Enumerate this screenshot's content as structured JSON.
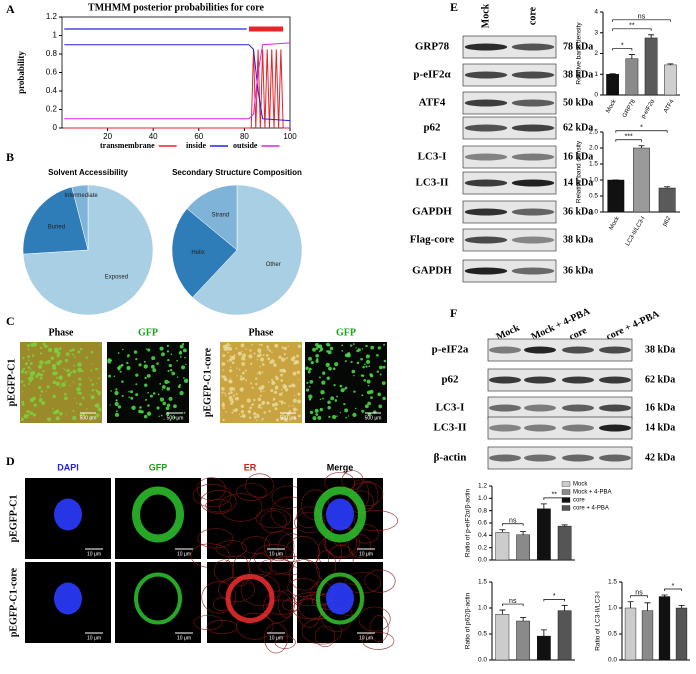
{
  "panel_labels": [
    "A",
    "B",
    "C",
    "D",
    "E",
    "F"
  ],
  "chart_data": [
    {
      "type": "line",
      "title": "TMHMM posterior probabilities for core",
      "y_label": "probability",
      "xlim": [
        0,
        100
      ],
      "ylim": [
        0,
        1.2
      ],
      "xticks": [
        20,
        40,
        60,
        80,
        100
      ],
      "yticks": [
        0,
        0.2,
        0.4,
        0.6,
        0.8,
        1,
        1.2
      ],
      "topology": [
        {
          "region": "inside",
          "start": 1,
          "end": 81
        },
        {
          "region": "transmembrane",
          "start": 82,
          "end": 97
        }
      ],
      "series": [
        {
          "name": "transmembrane",
          "color": "#e8232a",
          "x": [
            1,
            83,
            84,
            85,
            86,
            87,
            88,
            89,
            90,
            91,
            92,
            93,
            94,
            95,
            96,
            97,
            100
          ],
          "values": [
            0,
            0,
            0.85,
            0,
            0.85,
            0,
            0.85,
            0,
            0.85,
            0,
            0.85,
            0,
            0.85,
            0,
            0.85,
            0,
            0
          ]
        },
        {
          "name": "inside",
          "color": "#2424e0",
          "x": [
            1,
            82,
            84,
            86,
            88,
            100
          ],
          "values": [
            0.9,
            0.9,
            0.85,
            0.4,
            0.1,
            0.08
          ]
        },
        {
          "name": "outside",
          "color": "#e020e0",
          "x": [
            1,
            82,
            84,
            86,
            88,
            100
          ],
          "values": [
            0.1,
            0.1,
            0.15,
            0.6,
            0.9,
            0.92
          ]
        }
      ]
    },
    {
      "type": "pie",
      "title": "Solvent Accessibility",
      "categories": [
        "Exposed",
        "Buried",
        "Intermediate"
      ],
      "values": [
        74,
        22,
        4
      ],
      "colors": [
        "#a9cfe4",
        "#2f7db8",
        "#7fb4d8"
      ]
    },
    {
      "type": "pie",
      "title": "Secondary Structure Composition",
      "categories": [
        "Other",
        "Helix",
        "Strand"
      ],
      "values": [
        62,
        24,
        14
      ],
      "colors": [
        "#a9cfe4",
        "#2f7db8",
        "#7fb4d8"
      ]
    },
    {
      "type": "bar",
      "y_label": "Relative band density",
      "categories": [
        "Mock",
        "GRP78",
        "p-eIF2α",
        "ATF4"
      ],
      "values": [
        1,
        1.75,
        2.75,
        1.45
      ],
      "errors": [
        0.02,
        0.2,
        0.15,
        0.05
      ],
      "colors": [
        "#111111",
        "#8a8a8a",
        "#5a5a5a",
        "#cfcfcf"
      ],
      "ylim": [
        0,
        4
      ],
      "yticks": [
        0,
        1,
        2,
        3,
        4
      ],
      "annotations": [
        {
          "text": "*",
          "between": [
            0,
            1
          ]
        },
        {
          "text": "**",
          "between": [
            0,
            2
          ]
        },
        {
          "text": "ns",
          "between": [
            0,
            3
          ]
        }
      ]
    },
    {
      "type": "bar",
      "y_label": "Relative band density",
      "categories": [
        "Mock",
        "LC3-II/LC3-I",
        "p62"
      ],
      "values": [
        1,
        2,
        0.75
      ],
      "errors": [
        0,
        0.07,
        0.04
      ],
      "colors": [
        "#111111",
        "#9a9a9a",
        "#5a5a5a"
      ],
      "ylim": [
        0,
        2.5
      ],
      "yticks": [
        {
          "value": 0,
          "label": "0.0"
        },
        0.5,
        {
          "value": 1,
          "label": "1.0"
        },
        1.5,
        {
          "value": 2,
          "label": "2.0"
        },
        2.5
      ],
      "annotations": [
        {
          "text": "***",
          "between": [
            0,
            1
          ]
        },
        {
          "text": "*",
          "between": [
            0,
            2
          ]
        }
      ]
    },
    {
      "type": "bar",
      "y_label": "Ratio of p-eIF2α/β-actin",
      "legend": [
        "Mock",
        "Mock + 4-PBA",
        "core",
        "core + 4-PBA"
      ],
      "values": [
        0.45,
        0.41,
        0.83,
        0.55
      ],
      "errors": [
        0.04,
        0.05,
        0.08,
        0.02
      ],
      "colors": [
        "#cccccc",
        "#8a8a8a",
        "#111111",
        "#555555"
      ],
      "ylim": [
        0,
        1.2
      ],
      "yticks": [
        {
          "value": 0,
          "label": "0.0"
        },
        0.2,
        0.4,
        0.6,
        0.8,
        {
          "value": 1,
          "label": "1.0"
        },
        1.2
      ],
      "annotations": [
        {
          "text": "ns",
          "between": [
            0,
            1
          ]
        },
        {
          "text": "**",
          "between": [
            2,
            3
          ]
        }
      ]
    },
    {
      "type": "bar",
      "y_label": "Ratio of p62/β-actin",
      "values": [
        0.88,
        0.75,
        0.46,
        0.95
      ],
      "errors": [
        0.08,
        0.07,
        0.12,
        0.1
      ],
      "colors": [
        "#cccccc",
        "#8a8a8a",
        "#111111",
        "#555555"
      ],
      "ylim": [
        0,
        1.5
      ],
      "yticks": [
        {
          "value": 0,
          "label": "0.0"
        },
        0.5,
        {
          "value": 1,
          "label": "1.0"
        },
        1.5
      ],
      "annotations": [
        {
          "text": "ns",
          "between": [
            0,
            1
          ]
        },
        {
          "text": "*",
          "between": [
            2,
            3
          ]
        }
      ]
    },
    {
      "type": "bar",
      "y_label": "Ratio of LC3-II/LC3-I",
      "values": [
        1,
        0.95,
        1.22,
        1
      ],
      "errors": [
        0.12,
        0.15,
        0.03,
        0.05
      ],
      "colors": [
        "#cccccc",
        "#8a8a8a",
        "#111111",
        "#555555"
      ],
      "ylim": [
        0,
        1.5
      ],
      "yticks": [
        {
          "value": 0,
          "label": "0.0"
        },
        0.5,
        {
          "value": 1,
          "label": "1.0"
        },
        1.5
      ],
      "annotations": [
        {
          "text": "ns",
          "between": [
            0,
            1
          ]
        },
        {
          "text": "*",
          "between": [
            2,
            3
          ]
        }
      ]
    }
  ],
  "panel_c": {
    "columns": [
      "Phase",
      "GFP",
      "Phase",
      "GFP"
    ],
    "rows": [
      "pEGFP-C1",
      "pEGFP-C1-core"
    ],
    "scale": "500 μm"
  },
  "panel_d": {
    "columns": [
      "DAPI",
      "GFP",
      "ER",
      "Merge"
    ],
    "rows": [
      "pEGFP-C1",
      "pEGFP-C1-core"
    ],
    "scale": "10 μm"
  },
  "blot_e": {
    "lanes": [
      "Mock",
      "core"
    ],
    "rows": [
      {
        "label": "GRP78",
        "size": "78 kDa"
      },
      {
        "label": "p-eIF2α",
        "size": "38 kDa"
      },
      {
        "label": "ATF4",
        "size": "50 kDa"
      },
      {
        "label": "p62",
        "size": "62 kDa"
      },
      {
        "label": "LC3-I",
        "size": "16 kDa"
      },
      {
        "label": "LC3-II",
        "size": "14 kDa"
      },
      {
        "label": "GAPDH",
        "size": "36 kDa"
      },
      {
        "label": "Flag-core",
        "size": "38 kDa"
      },
      {
        "label": "GAPDH",
        "size": "36 kDa"
      }
    ]
  },
  "blot_f": {
    "lanes": [
      "Mock",
      "Mock + 4-PBA",
      "core",
      "core + 4-PBA"
    ],
    "rows": [
      {
        "label": "p-eIF2a",
        "size": "38 kDa"
      },
      {
        "label": "p62",
        "size": "62 kDa"
      },
      {
        "label": "LC3-I",
        "size": "16 kDa"
      },
      {
        "label": "LC3-II",
        "size": "14 kDa"
      },
      {
        "label": "β-actin",
        "size": "42 kDa"
      }
    ]
  }
}
